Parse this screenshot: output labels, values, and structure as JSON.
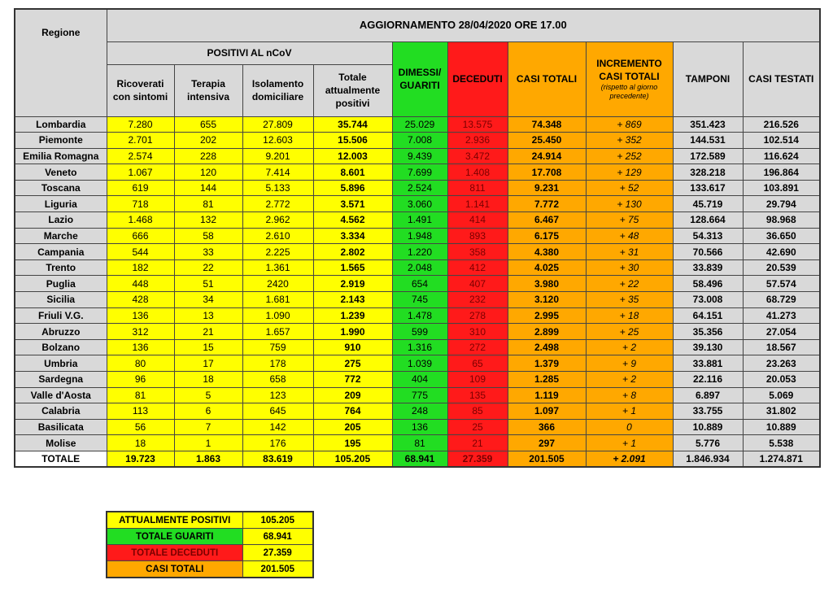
{
  "header": {
    "title": "AGGIORNAMENTO 28/04/2020 ORE 17.00",
    "region": "Regione",
    "group": "POSITIVI AL nCoV",
    "columns": [
      "Ricoverati con sintomi",
      "Terapia intensiva",
      "Isolamento domiciliare",
      "Totale attualmente positivi",
      "DIMESSI/ GUARITI",
      "DECEDUTI",
      "CASI TOTALI",
      "INCREMENTO CASI TOTALI",
      "TAMPONI",
      "CASI TESTATI"
    ],
    "note": "(rispetto al giorno precedente)"
  },
  "table": {
    "rows": [
      [
        "Lombardia",
        "7.280",
        "655",
        "27.809",
        "35.744",
        "25.029",
        "13.575",
        "74.348",
        "+ 869",
        "351.423",
        "216.526"
      ],
      [
        "Piemonte",
        "2.701",
        "202",
        "12.603",
        "15.506",
        "7.008",
        "2.936",
        "25.450",
        "+ 352",
        "144.531",
        "102.514"
      ],
      [
        "Emilia Romagna",
        "2.574",
        "228",
        "9.201",
        "12.003",
        "9.439",
        "3.472",
        "24.914",
        "+ 252",
        "172.589",
        "116.624"
      ],
      [
        "Veneto",
        "1.067",
        "120",
        "7.414",
        "8.601",
        "7.699",
        "1.408",
        "17.708",
        "+ 129",
        "328.218",
        "196.864"
      ],
      [
        "Toscana",
        "619",
        "144",
        "5.133",
        "5.896",
        "2.524",
        "811",
        "9.231",
        "+ 52",
        "133.617",
        "103.891"
      ],
      [
        "Liguria",
        "718",
        "81",
        "2.772",
        "3.571",
        "3.060",
        "1.141",
        "7.772",
        "+ 130",
        "45.719",
        "29.794"
      ],
      [
        "Lazio",
        "1.468",
        "132",
        "2.962",
        "4.562",
        "1.491",
        "414",
        "6.467",
        "+ 75",
        "128.664",
        "98.968"
      ],
      [
        "Marche",
        "666",
        "58",
        "2.610",
        "3.334",
        "1.948",
        "893",
        "6.175",
        "+ 48",
        "54.313",
        "36.650"
      ],
      [
        "Campania",
        "544",
        "33",
        "2.225",
        "2.802",
        "1.220",
        "358",
        "4.380",
        "+ 31",
        "70.566",
        "42.690"
      ],
      [
        "Trento",
        "182",
        "22",
        "1.361",
        "1.565",
        "2.048",
        "412",
        "4.025",
        "+ 30",
        "33.839",
        "20.539"
      ],
      [
        "Puglia",
        "448",
        "51",
        "2420",
        "2.919",
        "654",
        "407",
        "3.980",
        "+ 22",
        "58.496",
        "57.574"
      ],
      [
        "Sicilia",
        "428",
        "34",
        "1.681",
        "2.143",
        "745",
        "232",
        "3.120",
        "+ 35",
        "73.008",
        "68.729"
      ],
      [
        "Friuli V.G.",
        "136",
        "13",
        "1.090",
        "1.239",
        "1.478",
        "278",
        "2.995",
        "+ 18",
        "64.151",
        "41.273"
      ],
      [
        "Abruzzo",
        "312",
        "21",
        "1.657",
        "1.990",
        "599",
        "310",
        "2.899",
        "+ 25",
        "35.356",
        "27.054"
      ],
      [
        "Bolzano",
        "136",
        "15",
        "759",
        "910",
        "1.316",
        "272",
        "2.498",
        "+ 2",
        "39.130",
        "18.567"
      ],
      [
        "Umbria",
        "80",
        "17",
        "178",
        "275",
        "1.039",
        "65",
        "1.379",
        "+ 9",
        "33.881",
        "23.263"
      ],
      [
        "Sardegna",
        "96",
        "18",
        "658",
        "772",
        "404",
        "109",
        "1.285",
        "+ 2",
        "22.116",
        "20.053"
      ],
      [
        "Valle d'Aosta",
        "81",
        "5",
        "123",
        "209",
        "775",
        "135",
        "1.119",
        "+ 8",
        "6.897",
        "5.069"
      ],
      [
        "Calabria",
        "113",
        "6",
        "645",
        "764",
        "248",
        "85",
        "1.097",
        "+ 1",
        "33.755",
        "31.802"
      ],
      [
        "Basilicata",
        "56",
        "7",
        "142",
        "205",
        "136",
        "25",
        "366",
        "0",
        "10.889",
        "10.889"
      ],
      [
        "Molise",
        "18",
        "1",
        "176",
        "195",
        "81",
        "21",
        "297",
        "+ 1",
        "5.776",
        "5.538"
      ]
    ],
    "total": [
      "TOTALE",
      "19.723",
      "1.863",
      "83.619",
      "105.205",
      "68.941",
      "27.359",
      "201.505",
      "+ 2.091",
      "1.846.934",
      "1.274.871"
    ]
  },
  "summary": [
    {
      "label": "ATTUALMENTE POSITIVI",
      "value": "105.205"
    },
    {
      "label": "TOTALE GUARITI",
      "value": "68.941"
    },
    {
      "label": "TOTALE DECEDUTI",
      "value": "27.359"
    },
    {
      "label": "CASI TOTALI",
      "value": "201.505"
    }
  ]
}
